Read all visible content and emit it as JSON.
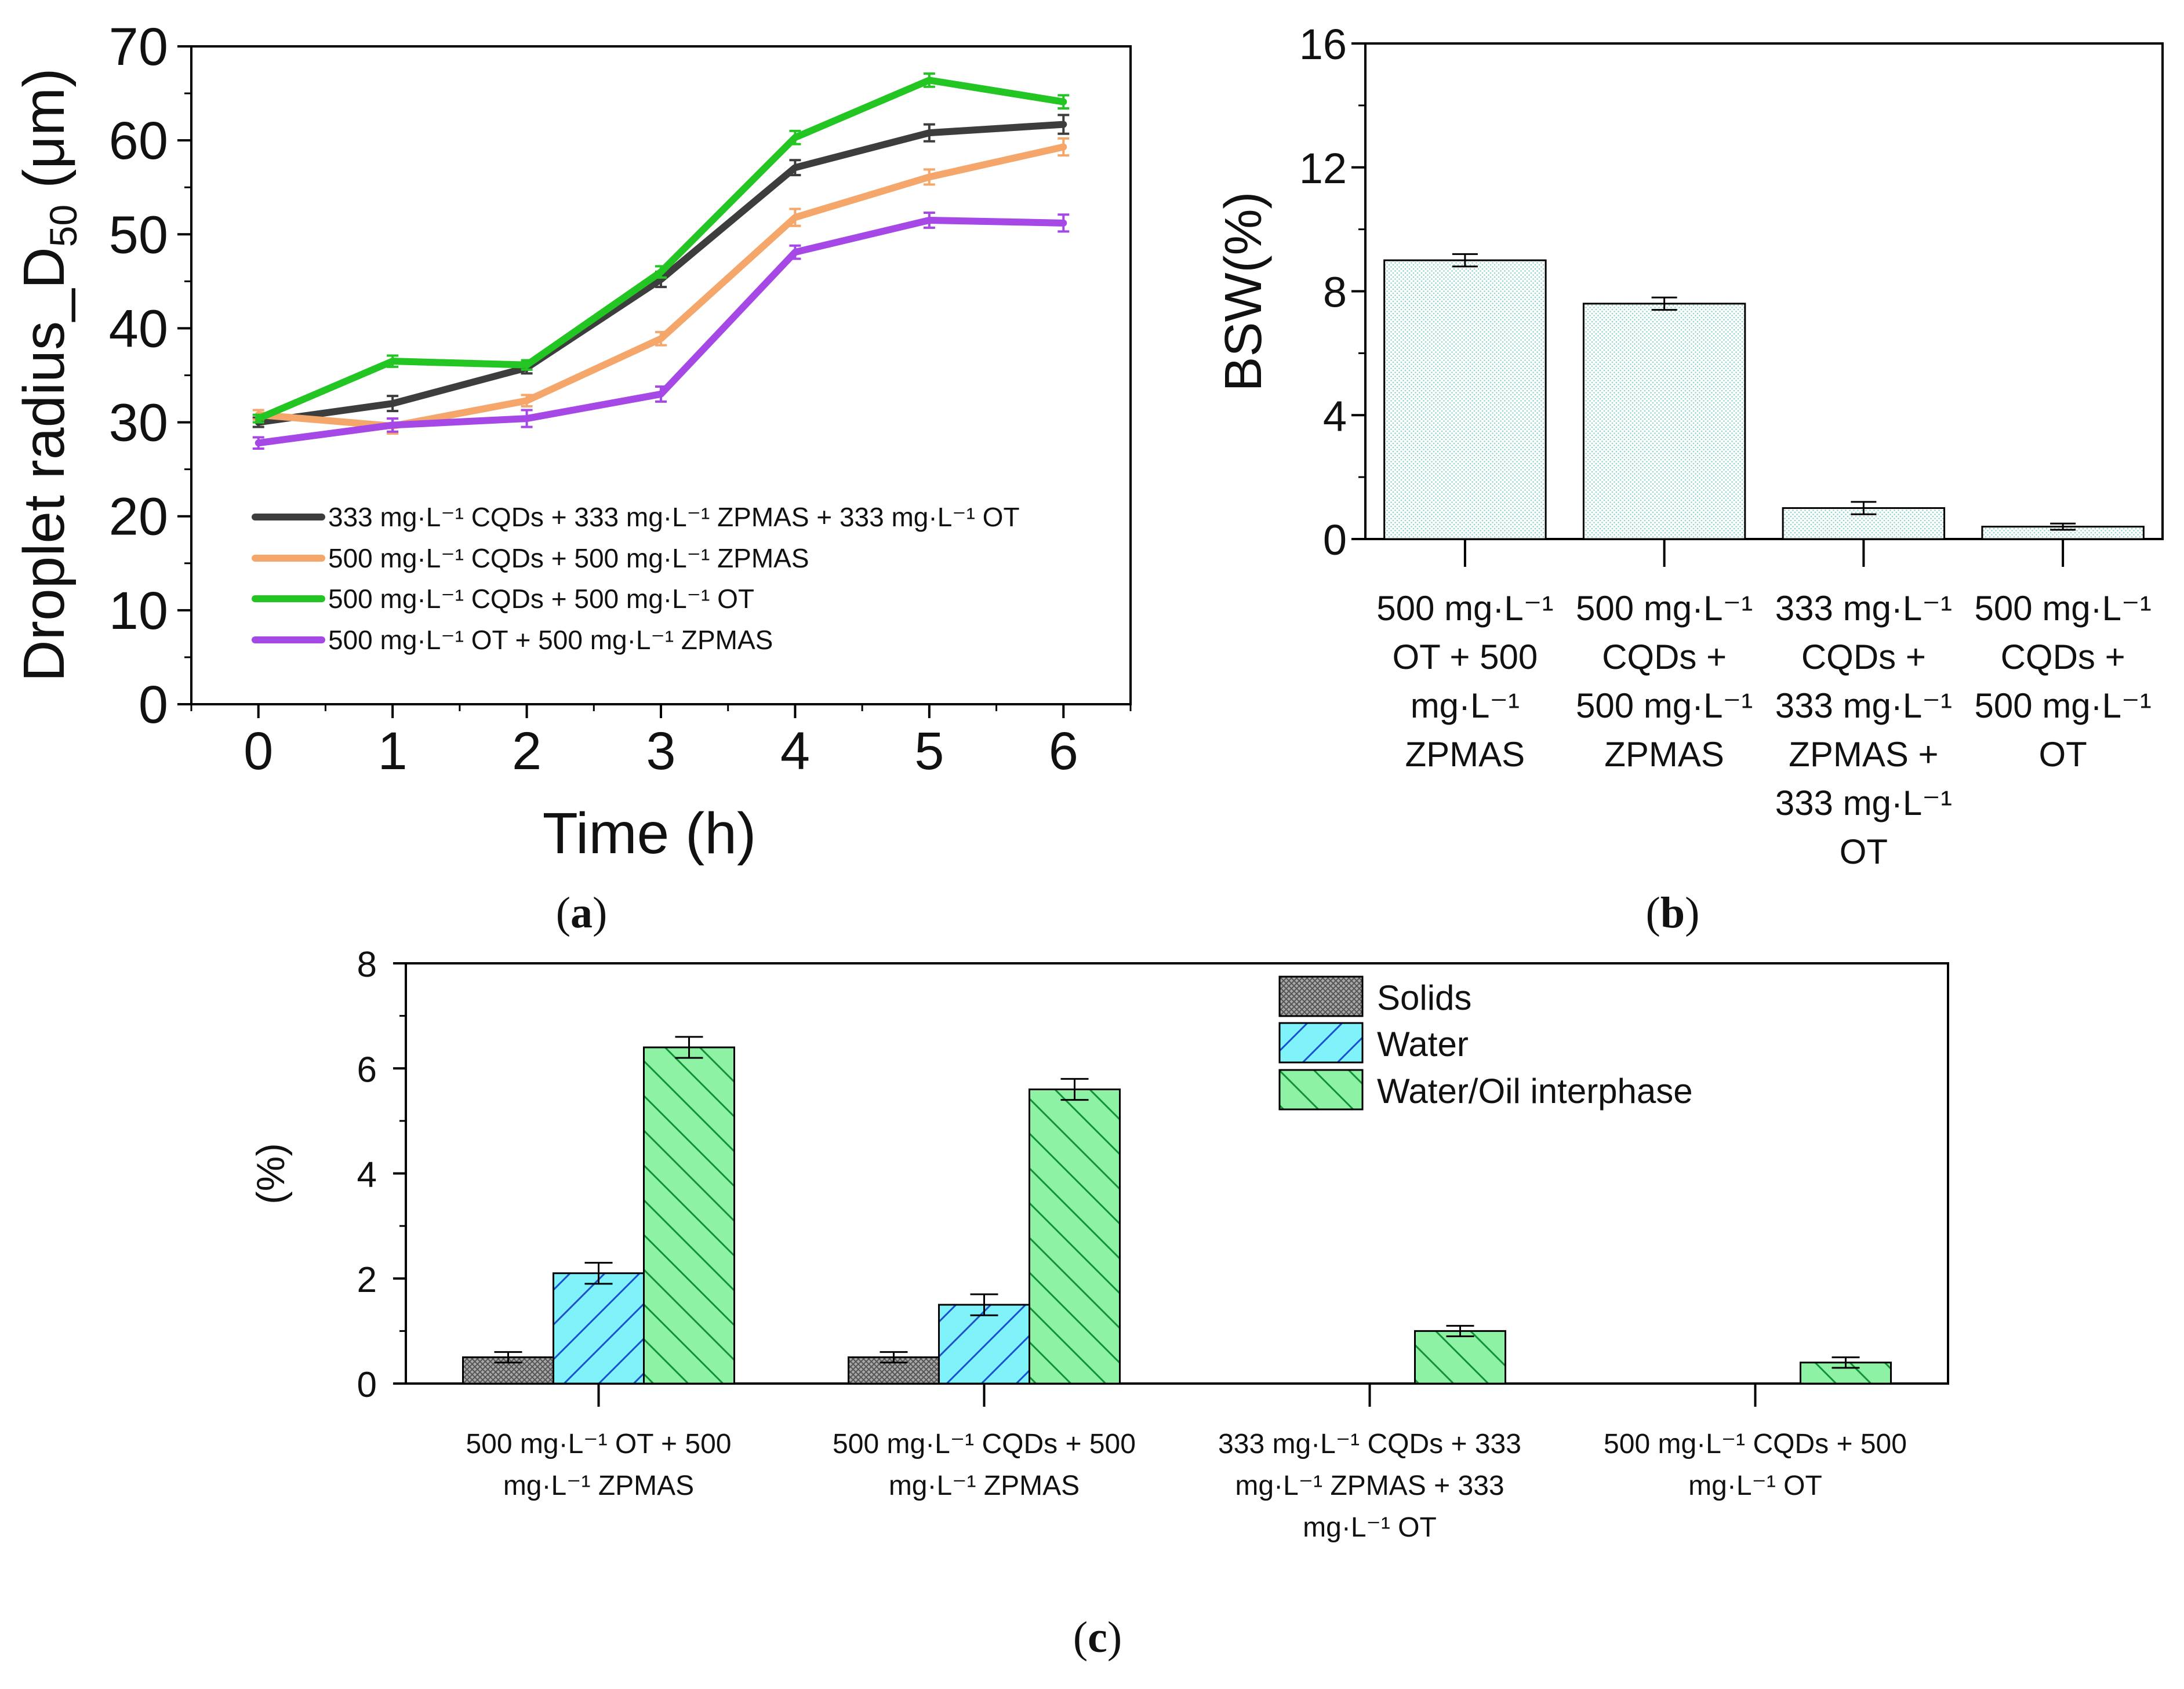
{
  "figure": {
    "panel_labels": [
      "a",
      "b",
      "c"
    ]
  },
  "chart_data": [
    {
      "id": "a",
      "type": "line",
      "title": "",
      "xlabel": "Time (h)",
      "ylabel": "Droplet radius_D",
      "ylabel_subscript": "50",
      "ylabel_unit": " (μm)",
      "x": [
        0,
        1,
        2,
        3,
        4,
        5,
        6
      ],
      "xlim": [
        -0.5,
        6.5
      ],
      "ylim": [
        0,
        70
      ],
      "xticks": [
        "0",
        "1",
        "2",
        "3",
        "4",
        "5",
        "6"
      ],
      "yticks": [
        "0",
        "10",
        "20",
        "30",
        "40",
        "50",
        "60",
        "70"
      ],
      "legend_position": "lower-right",
      "series": [
        {
          "name": "333 mg·L⁻¹  CQDs + 333 mg·L⁻¹  ZPMAS + 333 mg·L⁻¹ OT",
          "color": "#3d3d3d",
          "values": [
            30.0,
            32.0,
            35.8,
            45.2,
            57.1,
            60.8,
            61.7
          ],
          "errors": [
            0.5,
            0.8,
            0.6,
            0.8,
            0.8,
            0.9,
            1.0
          ]
        },
        {
          "name": "500 mg·L⁻¹ CQDs + 500 mg·L⁻¹ ZPMAS",
          "color": "#f5a66a",
          "values": [
            30.8,
            29.6,
            32.3,
            38.9,
            51.8,
            56.1,
            59.3
          ],
          "errors": [
            0.5,
            0.8,
            0.6,
            0.7,
            0.9,
            0.8,
            0.9
          ]
        },
        {
          "name": "500 mg·L⁻¹ CQDs + 500 mg·L⁻¹  OT",
          "color": "#22c522",
          "values": [
            30.4,
            36.5,
            36.1,
            46.0,
            60.3,
            66.4,
            64.1
          ],
          "errors": [
            0.4,
            0.6,
            0.5,
            0.6,
            0.7,
            0.7,
            0.7
          ]
        },
        {
          "name": "500 mg·L⁻¹  OT + 500 mg·L⁻¹  ZPMAS",
          "color": "#a548e6",
          "values": [
            27.8,
            29.7,
            30.4,
            33.0,
            48.1,
            51.5,
            51.2
          ],
          "errors": [
            0.6,
            0.7,
            0.9,
            0.8,
            0.7,
            0.8,
            0.9
          ]
        }
      ]
    },
    {
      "id": "b",
      "type": "bar",
      "title": "",
      "xlabel": "",
      "ylabel": "BSW(%)",
      "ylim": [
        0,
        16
      ],
      "yticks": [
        "0",
        "4",
        "8",
        "12",
        "16"
      ],
      "categories": [
        [
          "500 mg·L⁻¹",
          "OT + 500",
          "mg·L⁻¹",
          "ZPMAS"
        ],
        [
          "500 mg·L⁻¹",
          "CQDs +",
          "500 mg·L⁻¹",
          "ZPMAS"
        ],
        [
          "333 mg·L⁻¹",
          "CQDs +",
          "333 mg·L⁻¹",
          "ZPMAS +",
          "333 mg·L⁻¹",
          "OT"
        ],
        [
          "500 mg·L⁻¹",
          "CQDs +",
          "500 mg·L⁻¹",
          "OT"
        ]
      ],
      "values": [
        9.0,
        7.6,
        1.0,
        0.4
      ],
      "errors": [
        0.2,
        0.2,
        0.2,
        0.1
      ],
      "bar_fill": "#eef8f6"
    },
    {
      "id": "c",
      "type": "bar",
      "title": "",
      "xlabel": "",
      "ylabel": "(%)",
      "ylim": [
        0,
        8
      ],
      "yticks": [
        "0",
        "2",
        "4",
        "6",
        "8"
      ],
      "categories": [
        [
          "500 mg·L⁻¹ OT + 500",
          "mg·L⁻¹ ZPMAS"
        ],
        [
          "500 mg·L⁻¹ CQDs + 500",
          "mg·L⁻¹ ZPMAS"
        ],
        [
          "333 mg·L⁻¹ CQDs + 333",
          "mg·L⁻¹ ZPMAS + 333",
          "mg·L⁻¹ OT"
        ],
        [
          "500 mg·L⁻¹ CQDs + 500",
          "mg·L⁻¹ OT"
        ]
      ],
      "legend_position": "top-right",
      "series": [
        {
          "name": "Solids",
          "color": "#9a9a9a",
          "values": [
            0.5,
            0.5,
            0,
            0
          ],
          "errors": [
            0.1,
            0.1,
            0,
            0
          ]
        },
        {
          "name": "Water",
          "color": "#7ff2fa",
          "values": [
            2.1,
            1.5,
            0,
            0
          ],
          "errors": [
            0.2,
            0.2,
            0,
            0
          ]
        },
        {
          "name": "Water/Oil interphase",
          "color": "#8ef2a5",
          "values": [
            6.4,
            5.6,
            1.0,
            0.4
          ],
          "errors": [
            0.2,
            0.2,
            0.1,
            0.1
          ]
        }
      ]
    }
  ]
}
